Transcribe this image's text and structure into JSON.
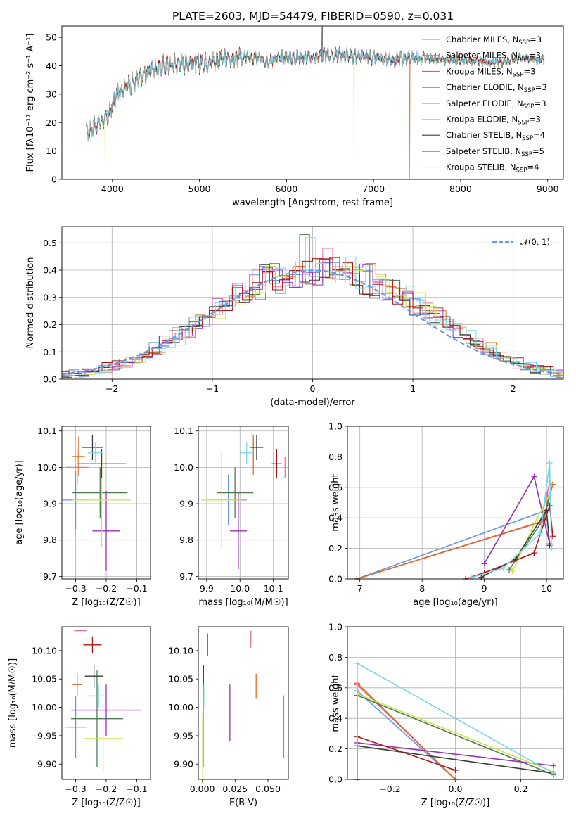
{
  "title": "PLATE=2603, MJD=54479, FIBERID=0590, z=0.031",
  "colors": [
    "#6495ed",
    "#e9729b",
    "#e06c20",
    "#4f7b52",
    "#9b30b4",
    "#c8e64a",
    "#3c3c3c",
    "#aa1515",
    "#7ad7e2"
  ],
  "chart_data": [
    {
      "id": "spectrum",
      "type": "line",
      "xlabel": "wavelength [Angstrom, rest frame]",
      "ylabel": "Flux [fλ10⁻¹⁷ erg cm⁻² s⁻¹ A⁻¹]",
      "xlim": [
        3420,
        9180
      ],
      "ylim": [
        0,
        54
      ],
      "xticks": [
        "4000",
        "5000",
        "6000",
        "7000",
        "8000",
        "9000"
      ],
      "yticks": [
        "0",
        "10",
        "20",
        "30",
        "40",
        "50"
      ],
      "grid": false,
      "legend_position": "upper right",
      "continuum": {
        "x": [
          3700,
          3800,
          3950,
          4050,
          4150,
          4300,
          4450,
          4600,
          4800,
          5000,
          5200,
          5500,
          5800,
          6000,
          6300,
          6600,
          6900,
          7200,
          7500,
          7800,
          8100,
          8400,
          8700,
          8950
        ],
        "y": [
          16,
          19,
          22,
          30,
          33,
          35,
          39,
          40,
          41,
          41,
          42,
          43,
          42,
          43,
          43,
          44,
          43,
          42,
          43,
          42,
          42,
          41,
          43,
          42
        ]
      },
      "dropouts": [
        {
          "x": 3915,
          "series": 5
        },
        {
          "x": 6775,
          "series": 5
        },
        {
          "x": 7415,
          "series": 2
        }
      ],
      "spike": {
        "x": 6410,
        "y": 54
      },
      "series": [
        {
          "name": "Chabrier MILES, N",
          "sub": "SSP",
          "suffix": "=3"
        },
        {
          "name": "Salpeter MILES, N",
          "sub": "SSP",
          "suffix": "=3"
        },
        {
          "name": "Kroupa MILES, N",
          "sub": "SSP",
          "suffix": "=3"
        },
        {
          "name": "Chabrier ELODIE, N",
          "sub": "SSP",
          "suffix": "=3"
        },
        {
          "name": "Salpeter ELODIE, N",
          "sub": "SSP",
          "suffix": "=3"
        },
        {
          "name": "Kroupa ELODIE, N",
          "sub": "SSP",
          "suffix": "=3"
        },
        {
          "name": "Chabrier STELIB, N",
          "sub": "SSP",
          "suffix": "=4"
        },
        {
          "name": "Salpeter STELIB, N",
          "sub": "SSP",
          "suffix": "=5"
        },
        {
          "name": "Kroupa STELIB, N",
          "sub": "SSP",
          "suffix": "=4"
        }
      ]
    },
    {
      "id": "residuals",
      "type": "histogram",
      "xlabel": "(data-model)/error",
      "ylabel": "Normed distribution",
      "xlim": [
        -2.5,
        2.5
      ],
      "ylim": [
        0,
        0.56
      ],
      "xticks": [
        -2,
        -1,
        0,
        1,
        2
      ],
      "xticklabels": [
        "−2",
        "−1",
        "0",
        "1",
        "2"
      ],
      "yticks": [
        0,
        0.1,
        0.2,
        0.3,
        0.4,
        0.5
      ],
      "yticklabels": [
        "0.0",
        "0.1",
        "0.2",
        "0.3",
        "0.4",
        "0.5"
      ],
      "grid": true,
      "legend": "𝒩(0, 1)",
      "bin_width": 0.1,
      "base_profile": [
        0.018,
        0.02,
        0.028,
        0.035,
        0.043,
        0.05,
        0.06,
        0.07,
        0.09,
        0.11,
        0.13,
        0.155,
        0.18,
        0.205,
        0.24,
        0.265,
        0.29,
        0.31,
        0.33,
        0.345,
        0.36,
        0.37,
        0.38,
        0.385,
        0.39,
        0.395,
        0.395,
        0.39,
        0.385,
        0.38,
        0.37,
        0.355,
        0.34,
        0.32,
        0.3,
        0.28,
        0.255,
        0.23,
        0.205,
        0.18,
        0.155,
        0.13,
        0.11,
        0.09,
        0.075,
        0.06,
        0.048,
        0.038,
        0.03,
        0.022
      ]
    },
    {
      "id": "z-age",
      "type": "errorbar",
      "xlabel": "Z [log₁₀(Z/Z☉)]",
      "ylabel": "age  [log₁₀(age/yr)]",
      "xlim": [
        -0.345,
        -0.055
      ],
      "ylim": [
        9.693,
        10.113
      ],
      "xticks": [
        -0.3,
        -0.2,
        -0.1
      ],
      "xticklabels": [
        "−0.3",
        "−0.2",
        "−0.1"
      ],
      "yticks": [
        9.7,
        9.8,
        9.9,
        10.0,
        10.1
      ],
      "yticklabels": [
        "9.7",
        "9.8",
        "9.9",
        "10.0",
        "10.1"
      ],
      "grid": true,
      "points": [
        {
          "x": -0.3,
          "xe": 0.045,
          "y": 9.91,
          "ye": 0.08,
          "c": 0
        },
        {
          "x": -0.295,
          "xe": 0.04,
          "y": 10.0,
          "ye": 0.05,
          "c": 1
        },
        {
          "x": -0.29,
          "xe": 0.02,
          "y": 10.03,
          "ye": 0.055,
          "c": 2
        },
        {
          "x": -0.22,
          "xe": 0.09,
          "y": 9.93,
          "ye": 0.07,
          "c": 3
        },
        {
          "x": -0.2,
          "xe": 0.045,
          "y": 9.825,
          "ye": 0.11,
          "c": 4
        },
        {
          "x": -0.215,
          "xe": 0.095,
          "y": 9.91,
          "ye": 0.13,
          "c": 5
        },
        {
          "x": -0.245,
          "xe": 0.035,
          "y": 10.055,
          "ye": 0.035,
          "c": 6
        },
        {
          "x": -0.215,
          "xe": 0.08,
          "y": 10.01,
          "ye": 0.04,
          "c": 7
        },
        {
          "x": -0.235,
          "xe": 0.025,
          "y": 10.04,
          "ye": 0.03,
          "c": 8
        }
      ]
    },
    {
      "id": "mass-age",
      "type": "errorbar",
      "xlabel": "mass [log₁₀(M/M☉)]",
      "ylabel": "",
      "xlim": [
        9.875,
        10.145
      ],
      "ylim": [
        9.693,
        10.113
      ],
      "xticks": [
        9.9,
        10.0,
        10.1
      ],
      "xticklabels": [
        "9.9",
        "10.0",
        "10.1"
      ],
      "yticks": [
        9.7,
        9.8,
        9.9,
        10.0,
        10.1
      ],
      "yticklabels": [
        "9.7",
        "9.8",
        "9.9",
        "10.0",
        "10.1"
      ],
      "grid": true,
      "points": [
        {
          "x": 9.965,
          "xe": 0.055,
          "y": 9.91,
          "ye": 0.07,
          "c": 0
        },
        {
          "x": 10.135,
          "xe": 0.0,
          "y": 10.0,
          "ye": 0.03,
          "c": 1
        },
        {
          "x": 10.04,
          "xe": 0.0,
          "y": 10.035,
          "ye": 0.055,
          "c": 2
        },
        {
          "x": 9.985,
          "xe": 0.055,
          "y": 9.93,
          "ye": 0.07,
          "c": 3
        },
        {
          "x": 9.995,
          "xe": 0.025,
          "y": 9.825,
          "ye": 0.105,
          "c": 4
        },
        {
          "x": 9.945,
          "xe": 0.06,
          "y": 9.91,
          "ye": 0.13,
          "c": 5
        },
        {
          "x": 10.05,
          "xe": 0.02,
          "y": 10.055,
          "ye": 0.035,
          "c": 6
        },
        {
          "x": 10.11,
          "xe": 0.015,
          "y": 10.01,
          "ye": 0.04,
          "c": 7
        },
        {
          "x": 10.02,
          "xe": 0.02,
          "y": 10.04,
          "ye": 0.03,
          "c": 8
        }
      ]
    },
    {
      "id": "age-weight",
      "type": "line",
      "xlabel": "age  [log₁₀(age/yr)]",
      "ylabel": "mass weight",
      "xlim": [
        6.8,
        10.27
      ],
      "ylim": [
        0,
        1.0
      ],
      "xticks": [
        7,
        8,
        9,
        10
      ],
      "xticklabels": [
        "7",
        "8",
        "9",
        "10"
      ],
      "yticks": [
        0,
        0.2,
        0.4,
        0.6,
        0.8,
        1.0
      ],
      "yticklabels": [
        "0.0",
        "0.2",
        "0.4",
        "0.6",
        "0.8",
        "1.0"
      ],
      "grid": true,
      "series": [
        {
          "c": 0,
          "x": [
            6.95,
            10.0,
            10.02
          ],
          "y": [
            0.0,
            0.45,
            0.55
          ]
        },
        {
          "c": 1,
          "x": [
            6.95,
            9.9,
            10.05
          ],
          "y": [
            0.0,
            0.37,
            0.63
          ]
        },
        {
          "c": 2,
          "x": [
            6.95,
            9.95,
            10.1
          ],
          "y": [
            0.0,
            0.38,
            0.62
          ]
        },
        {
          "c": 3,
          "x": [
            9.4,
            9.95,
            10.05
          ],
          "y": [
            0.06,
            0.39,
            0.55
          ]
        },
        {
          "c": 4,
          "x": [
            9.0,
            9.8,
            10.05
          ],
          "y": [
            0.1,
            0.67,
            0.23
          ]
        },
        {
          "c": 5,
          "x": [
            9.45,
            9.85,
            10.05
          ],
          "y": [
            0.05,
            0.4,
            0.55
          ]
        },
        {
          "c": 6,
          "x": [
            8.95,
            9.5,
            10.0,
            10.05
          ],
          "y": [
            0.01,
            0.13,
            0.45,
            0.22
          ]
        },
        {
          "c": 7,
          "x": [
            8.7,
            9.0,
            9.8,
            10.05,
            10.1
          ],
          "y": [
            0.0,
            0.04,
            0.17,
            0.48,
            0.28
          ]
        },
        {
          "c": 8,
          "x": [
            8.8,
            9.3,
            9.9,
            10.05,
            10.08
          ],
          "y": [
            0.01,
            0.07,
            0.3,
            0.76,
            0.2
          ]
        }
      ]
    },
    {
      "id": "z-mass",
      "type": "errorbar",
      "xlabel": "Z [log₁₀(Z/Z☉)]",
      "ylabel": "mass [log₁₀(M/M☉)]",
      "xlim": [
        -0.345,
        -0.055
      ],
      "ylim": [
        9.873,
        10.142
      ],
      "xticks": [
        -0.3,
        -0.2,
        -0.1
      ],
      "xticklabels": [
        "−0.3",
        "−0.2",
        "−0.1"
      ],
      "yticks": [
        9.9,
        9.95,
        10.0,
        10.05,
        10.1
      ],
      "yticklabels": [
        "9.90",
        "9.95",
        "10.00",
        "10.05",
        "10.10"
      ],
      "grid": false,
      "points": [
        {
          "x": -0.3,
          "xe": 0.035,
          "y": 9.965,
          "ye": 0.055,
          "c": 0
        },
        {
          "x": -0.285,
          "xe": 0.02,
          "y": 10.135,
          "ye": 0.0,
          "c": 1
        },
        {
          "x": -0.295,
          "xe": 0.015,
          "y": 10.04,
          "ye": 0.02,
          "c": 2
        },
        {
          "x": -0.23,
          "xe": 0.085,
          "y": 9.98,
          "ye": 0.085,
          "c": 3
        },
        {
          "x": -0.2,
          "xe": 0.115,
          "y": 9.995,
          "ye": 0.045,
          "c": 4
        },
        {
          "x": -0.21,
          "xe": 0.065,
          "y": 9.945,
          "ye": 0.06,
          "c": 5
        },
        {
          "x": -0.24,
          "xe": 0.03,
          "y": 10.055,
          "ye": 0.02,
          "c": 6
        },
        {
          "x": -0.245,
          "xe": 0.03,
          "y": 10.11,
          "ye": 0.015,
          "c": 7
        },
        {
          "x": -0.225,
          "xe": 0.035,
          "y": 10.02,
          "ye": 0.02,
          "c": 8
        }
      ]
    },
    {
      "id": "ebv-mass",
      "type": "errorbar",
      "xlabel": "E(B-V)",
      "ylabel": "",
      "xlim": [
        -0.003,
        0.0655
      ],
      "ylim": [
        9.873,
        10.142
      ],
      "xticks": [
        0.0,
        0.025,
        0.05
      ],
      "xticklabels": [
        "0.000",
        "0.025",
        "0.050"
      ],
      "yticks": [
        9.9,
        9.95,
        10.0,
        10.05,
        10.1
      ],
      "yticklabels": [
        "9.90",
        "9.95",
        "10.00",
        "10.05",
        "10.10"
      ],
      "grid": false,
      "points": [
        {
          "x": 0.062,
          "xe": 0.0,
          "y": 9.966,
          "ye": 0.055,
          "c": 0
        },
        {
          "x": 0.037,
          "xe": 0.0,
          "y": 10.12,
          "ye": 0.015,
          "c": 1
        },
        {
          "x": 0.041,
          "xe": 0.0,
          "y": 10.037,
          "ye": 0.022,
          "c": 2
        },
        {
          "x": 0.0007,
          "xe": 0.0,
          "y": 9.98,
          "ye": 0.085,
          "c": 3
        },
        {
          "x": 0.021,
          "xe": 0.0,
          "y": 9.99,
          "ye": 0.05,
          "c": 4
        },
        {
          "x": 0.0003,
          "xe": 0.0,
          "y": 9.93,
          "ye": 0.06,
          "c": 5
        },
        {
          "x": 0.0009,
          "xe": 0.0,
          "y": 10.05,
          "ye": 0.025,
          "c": 6
        },
        {
          "x": 0.004,
          "xe": 0.0,
          "y": 10.11,
          "ye": 0.02,
          "c": 7
        },
        {
          "x": 0.0012,
          "xe": 0.0,
          "y": 10.02,
          "ye": 0.02,
          "c": 8
        }
      ]
    },
    {
      "id": "z-weight",
      "type": "line",
      "xlabel": "Z [log₁₀(Z/Z☉)]",
      "ylabel": "mass weight",
      "xlim": [
        -0.33,
        0.33
      ],
      "ylim": [
        0,
        1.0
      ],
      "xticks": [
        -0.2,
        0.0,
        0.2
      ],
      "xticklabels": [
        "−0.2",
        "0.0",
        "0.2"
      ],
      "yticks": [
        0,
        0.2,
        0.4,
        0.6,
        0.8,
        1.0
      ],
      "yticklabels": [
        "0.0",
        "0.2",
        "0.4",
        "0.6",
        "0.8",
        "1.0"
      ],
      "grid": true,
      "series": [
        {
          "c": 0,
          "x": [
            -0.3,
            -0.3,
            0.0
          ],
          "y": [
            0.0,
            0.58,
            0.0
          ]
        },
        {
          "c": 1,
          "x": [
            -0.3,
            -0.3,
            0.0
          ],
          "y": [
            0.0,
            0.62,
            0.0
          ]
        },
        {
          "c": 2,
          "x": [
            -0.3,
            -0.3,
            0.0
          ],
          "y": [
            0.0,
            0.63,
            0.0
          ]
        },
        {
          "c": 3,
          "x": [
            -0.3,
            -0.3,
            0.3
          ],
          "y": [
            0.0,
            0.55,
            0.03
          ]
        },
        {
          "c": 4,
          "x": [
            -0.3,
            -0.3,
            0.3
          ],
          "y": [
            0.0,
            0.24,
            0.09
          ]
        },
        {
          "c": 5,
          "x": [
            -0.3,
            -0.3,
            0.3
          ],
          "y": [
            0.0,
            0.56,
            0.05
          ]
        },
        {
          "c": 6,
          "x": [
            -0.3,
            -0.3,
            0.3
          ],
          "y": [
            0.0,
            0.22,
            0.04
          ]
        },
        {
          "c": 7,
          "x": [
            -0.3,
            -0.3,
            0.0
          ],
          "y": [
            0.0,
            0.28,
            0.06
          ]
        },
        {
          "c": 8,
          "x": [
            -0.3,
            -0.3,
            0.3
          ],
          "y": [
            0.0,
            0.76,
            0.04
          ]
        }
      ]
    }
  ]
}
